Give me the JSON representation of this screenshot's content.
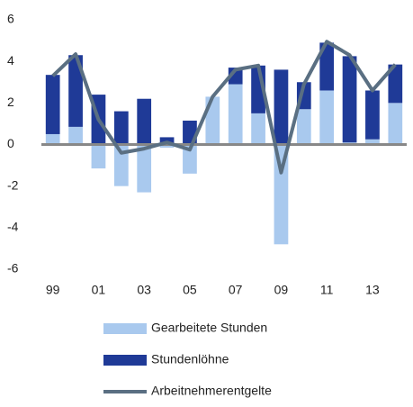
{
  "chart_data": {
    "type": "stacked-bar-line",
    "categories": [
      "99",
      null,
      "01",
      null,
      "03",
      null,
      "05",
      null,
      "07",
      null,
      "09",
      null,
      "11",
      null,
      "13",
      null
    ],
    "series": [
      {
        "name": "Gearbeitete Stunden",
        "type": "bar",
        "color": "#a9c9ee",
        "values": [
          0.5,
          0.85,
          -1.15,
          -2.0,
          -2.3,
          -0.15,
          -1.4,
          2.3,
          2.9,
          1.5,
          -4.8,
          1.7,
          2.6,
          0.1,
          0.25,
          2.0
        ]
      },
      {
        "name": "Stundenlöhne",
        "type": "bar",
        "color": "#1f3a97",
        "values": [
          2.85,
          3.45,
          2.4,
          1.6,
          2.2,
          0.35,
          1.15,
          0,
          0.8,
          2.3,
          3.6,
          1.3,
          2.3,
          4.15,
          2.35,
          1.85
        ]
      },
      {
        "name": "Arbeitnehmerentgelte",
        "type": "line",
        "color": "#5a6f82",
        "values": [
          3.3,
          4.35,
          1.2,
          -0.4,
          -0.2,
          0.1,
          -0.25,
          2.3,
          3.6,
          3.8,
          -1.35,
          2.9,
          4.95,
          4.3,
          2.6,
          3.85
        ]
      }
    ],
    "ylim": [
      -6,
      6
    ],
    "yticks": [
      -6,
      -4,
      -2,
      0,
      2,
      4,
      6
    ]
  }
}
